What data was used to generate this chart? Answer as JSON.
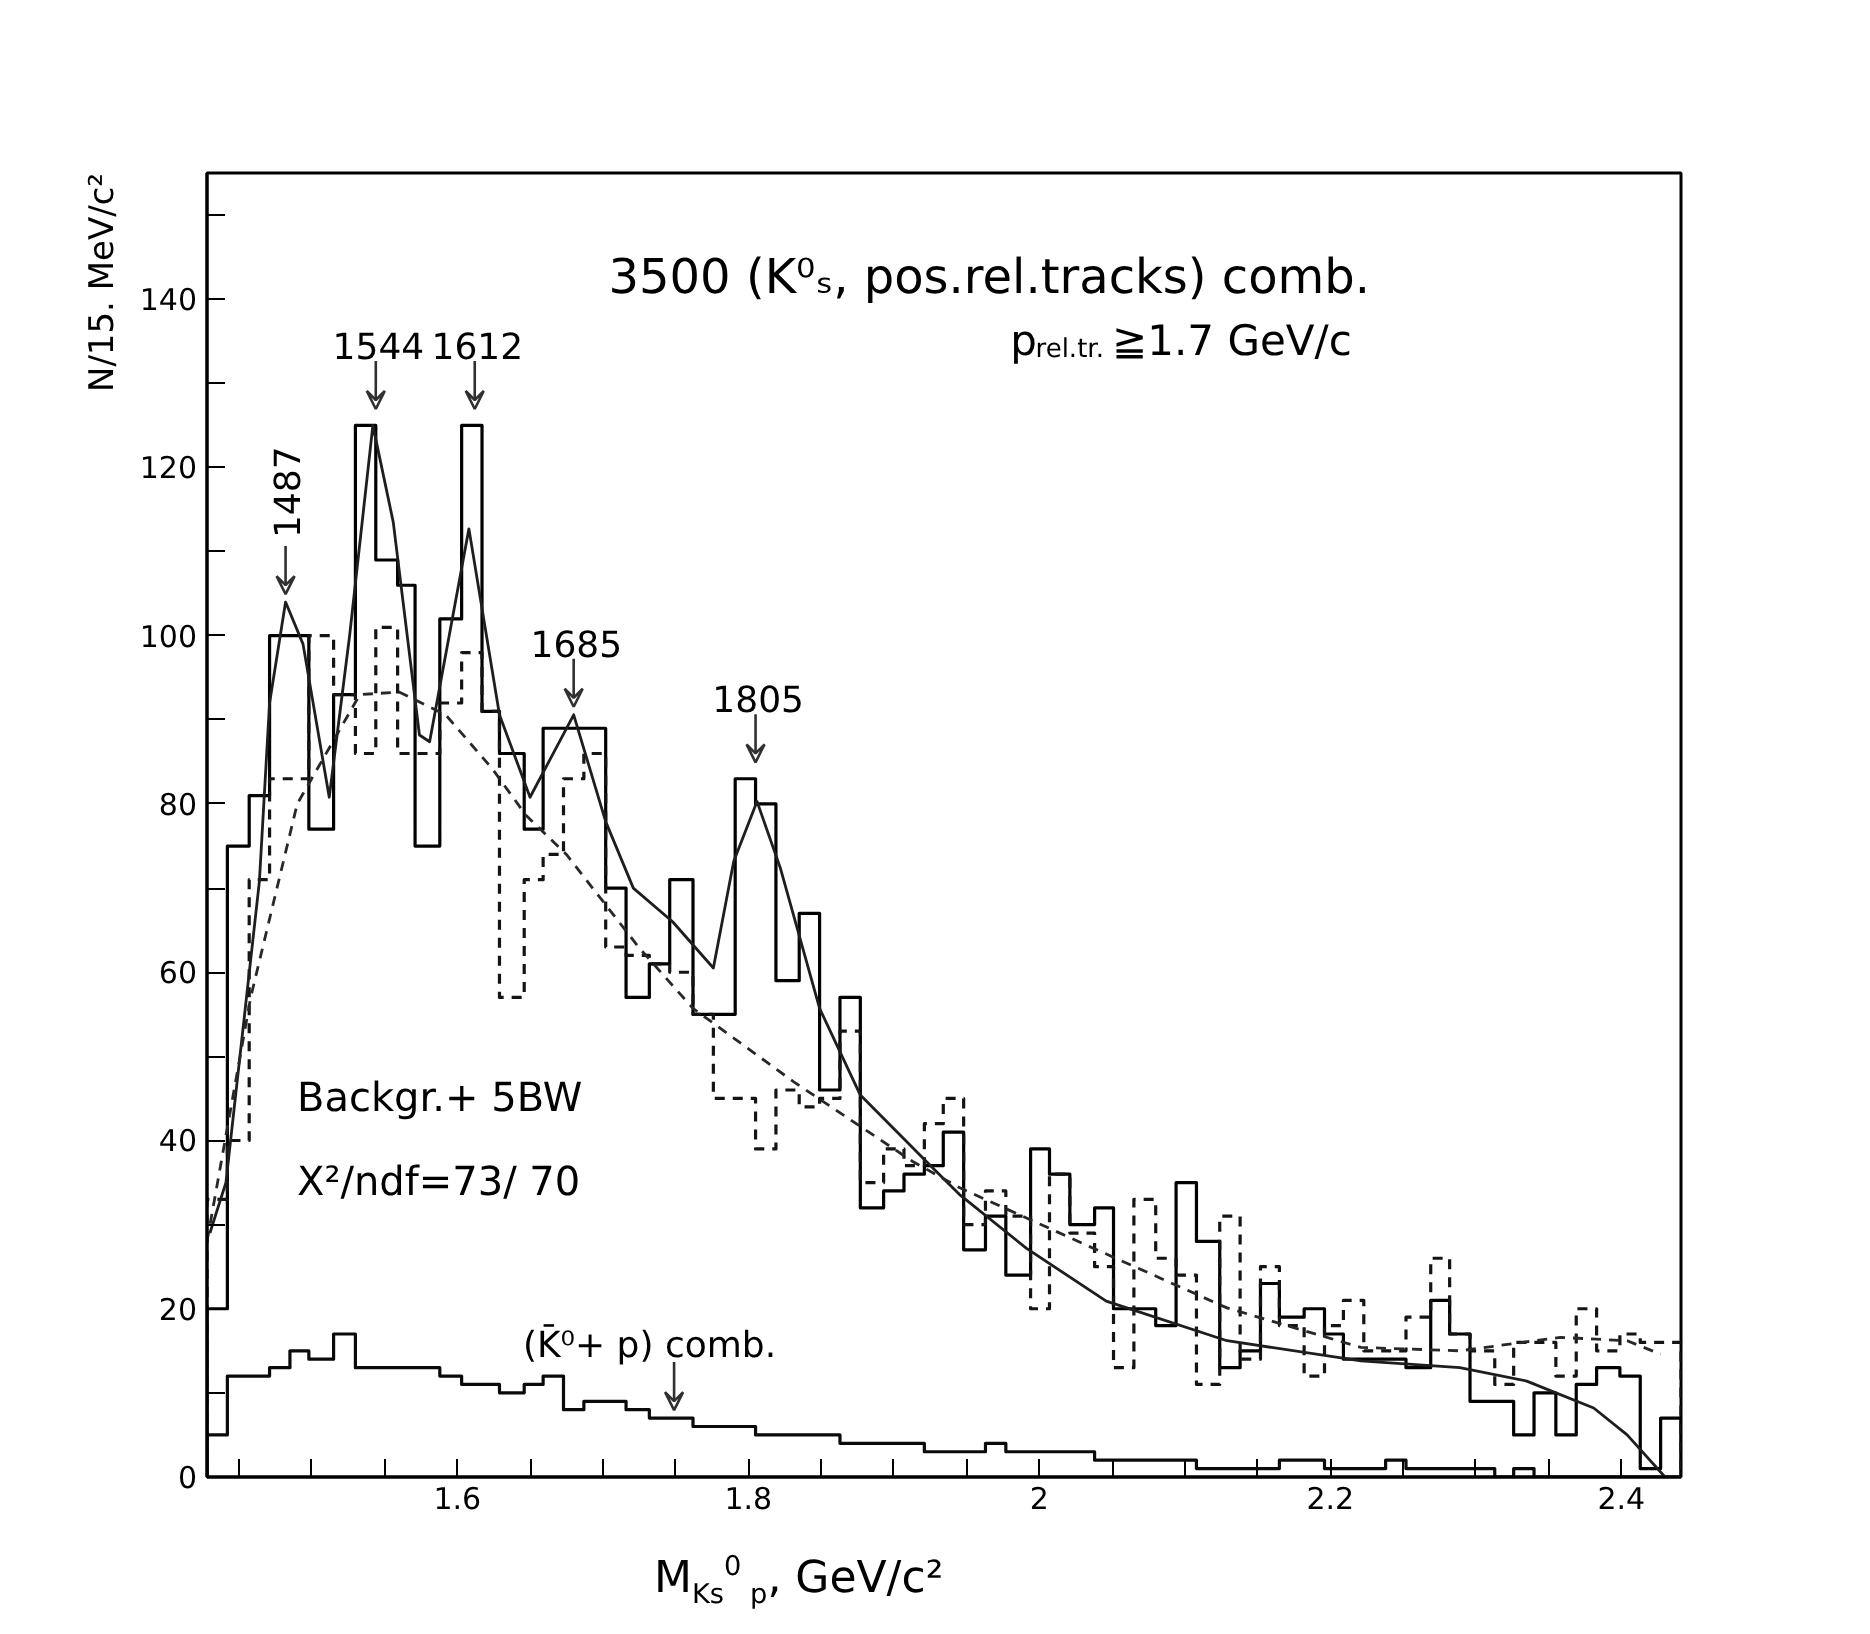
{
  "chart_data": {
    "type": "histogram",
    "title": "3500 (K⁰ₛ, pos.rel.tracks) comb.",
    "subtitle": "p$_{rel.tr.}$≧1.7 GeV/c",
    "xlabel": "M$_{Ks}$$^{0}$$_{ p}$, GeV/c²",
    "ylabel": "N/15. MeV/c²",
    "xlim": [
      1.428,
      2.441
    ],
    "ylim": [
      0,
      155
    ],
    "xticks": [
      {
        "value": 1.45,
        "label": null
      },
      {
        "value": 1.5,
        "label": null
      },
      {
        "value": 1.55,
        "label": null
      },
      1.6,
      {
        "value": 1.65,
        "label": null
      },
      {
        "value": 1.7,
        "label": null
      },
      {
        "value": 1.75,
        "label": null
      },
      1.8,
      {
        "value": 1.85,
        "label": null
      },
      {
        "value": 1.9,
        "label": null
      },
      {
        "value": 1.95,
        "label": null
      },
      2,
      {
        "value": 2.05,
        "label": null
      },
      {
        "value": 2.1,
        "label": null
      },
      {
        "value": 2.15,
        "label": null
      },
      2.2,
      {
        "value": 2.25,
        "label": null
      },
      {
        "value": 2.3,
        "label": null
      },
      {
        "value": 2.35,
        "label": null
      },
      2.4
    ],
    "yticks": [
      0,
      {
        "value": 10,
        "label": null
      },
      20,
      {
        "value": 30,
        "label": null
      },
      40,
      {
        "value": 50,
        "label": null
      },
      60,
      {
        "value": 70,
        "label": null
      },
      80,
      {
        "value": 90,
        "label": null
      },
      100,
      {
        "value": 110,
        "label": null
      },
      120,
      {
        "value": 130,
        "label": null
      },
      140,
      {
        "value": 150,
        "label": null
      }
    ],
    "bins": [
      1.428,
      1.442,
      1.457,
      1.471,
      1.485,
      1.498,
      1.515,
      1.53,
      1.544,
      1.559,
      1.571,
      1.588,
      1.603,
      1.617,
      1.629,
      1.646,
      1.659,
      1.673,
      1.687,
      1.702,
      1.716,
      1.732,
      1.746,
      1.762,
      1.776,
      1.791,
      1.805,
      1.819,
      1.835,
      1.849,
      1.863,
      1.877,
      1.893,
      1.907,
      1.921,
      1.934,
      1.948,
      1.963,
      1.977,
      1.994,
      2.007,
      2.021,
      2.038,
      2.051,
      2.065,
      2.08,
      2.094,
      2.108,
      2.124,
      2.138,
      2.152,
      2.165,
      2.182,
      2.196,
      2.209,
      2.223,
      2.238,
      2.252,
      2.269,
      2.282,
      2.296,
      2.313,
      2.326,
      2.34,
      2.355,
      2.369,
      2.383,
      2.399,
      2.413,
      2.427,
      2.441
    ],
    "series": [
      {
        "color": "#000000",
        "line_style": "solid",
        "values": [
          20,
          75,
          81,
          100,
          100,
          77,
          93,
          125,
          109,
          106,
          75,
          102,
          125,
          91,
          86,
          77,
          89,
          89,
          89,
          70,
          57,
          61,
          71,
          55,
          55,
          83,
          80,
          59,
          67,
          46,
          57,
          32,
          34,
          36,
          37,
          41,
          27,
          31,
          24,
          39,
          36,
          30,
          32,
          20,
          20,
          18,
          35,
          28,
          13,
          15,
          23,
          19,
          20,
          17,
          14,
          14,
          14,
          13,
          21,
          17,
          9,
          9,
          5,
          10,
          5,
          11,
          13,
          12,
          1,
          7
        ]
      },
      {
        "color": "#141414",
        "line_style": "dashed",
        "values": [
          33,
          40,
          71,
          83,
          83,
          100,
          93,
          86,
          101,
          86,
          86,
          92,
          98,
          91,
          57,
          71,
          74,
          83,
          86,
          63,
          62,
          61,
          60,
          55,
          45,
          45,
          39,
          46,
          44,
          45,
          53,
          35,
          39,
          37,
          42,
          45,
          30,
          34,
          31,
          20,
          36,
          29,
          25,
          13,
          33,
          26,
          24,
          11,
          31,
          14,
          25,
          18,
          12,
          18,
          21,
          15,
          15,
          19,
          26,
          17,
          15,
          11,
          16,
          16,
          12,
          20,
          15,
          17,
          16,
          16
        ]
      },
      {
        "color": "#0a0a0a",
        "line_style": "solid",
        "values": [
          5,
          12,
          12,
          13,
          15,
          14,
          17,
          13,
          13,
          13,
          13,
          12,
          11,
          11,
          10,
          11,
          12,
          8,
          9,
          9,
          8,
          7,
          7,
          6,
          6,
          6,
          5,
          5,
          5,
          5,
          4,
          4,
          4,
          4,
          3,
          3,
          3,
          4,
          3,
          3,
          3,
          3,
          2,
          2,
          2,
          2,
          2,
          1,
          1,
          1,
          1,
          2,
          2,
          1,
          1,
          1,
          2,
          1,
          1,
          1,
          1,
          0,
          1,
          0,
          0,
          0,
          0,
          0,
          0,
          0
        ]
      },
      {
        "type": "line",
        "color": "#1e1e1e",
        "line_style": "solid",
        "x": [
          1.43,
          1.441,
          1.464,
          1.471,
          1.482,
          1.494,
          1.512,
          1.526,
          1.542,
          1.556,
          1.574,
          1.581,
          1.608,
          1.629,
          1.65,
          1.68,
          1.702,
          1.721,
          1.748,
          1.776,
          1.79,
          1.806,
          1.822,
          1.849,
          1.877,
          1.927,
          1.945,
          1.991,
          2.046,
          2.129,
          2.221,
          2.289,
          2.335,
          2.381,
          2.404,
          2.43
        ],
        "values": [
          29,
          35,
          70.8,
          92,
          104,
          99,
          80.8,
          100,
          125,
          113.5,
          88.2,
          87.4,
          112.7,
          90.6,
          80.8,
          90.6,
          77.9,
          70,
          66,
          60.5,
          73.2,
          80.3,
          72.4,
          55.7,
          45.4,
          36.7,
          33.6,
          27.2,
          20.9,
          16.2,
          13.8,
          13,
          11.4,
          8.2,
          5,
          0
        ]
      },
      {
        "type": "line",
        "color": "#282828",
        "line_style": "dashed",
        "x": [
          1.428,
          1.458,
          1.49,
          1.533,
          1.56,
          1.592,
          1.624,
          1.647,
          1.675,
          1.725,
          1.762,
          1.831,
          1.913,
          1.945,
          2.037,
          2.129,
          2.221,
          2.289,
          2.358,
          2.404,
          2.427
        ],
        "values": [
          28,
          57,
          80,
          93,
          93.3,
          90.6,
          84.2,
          78.7,
          74,
          62.9,
          55.7,
          47,
          37.5,
          34.4,
          27.2,
          20.1,
          15.4,
          15,
          16.6,
          16.2,
          14.6
        ]
      }
    ],
    "annotations": [
      {
        "text": "1487",
        "x": 1.482,
        "y": 104
      },
      {
        "text": "1544",
        "x": 1.544,
        "y": 126
      },
      {
        "text": "1612",
        "x": 1.612,
        "y": 126
      },
      {
        "text": "1685",
        "x": 1.68,
        "y": 90.6
      },
      {
        "text": "1805",
        "x": 1.805,
        "y": 84
      },
      {
        "text": "(K̄⁰+ p) comb.",
        "x": 1.749,
        "y": 7
      },
      "Backgr.+ 5BW",
      "X²/ndf=73/ 70"
    ]
  }
}
